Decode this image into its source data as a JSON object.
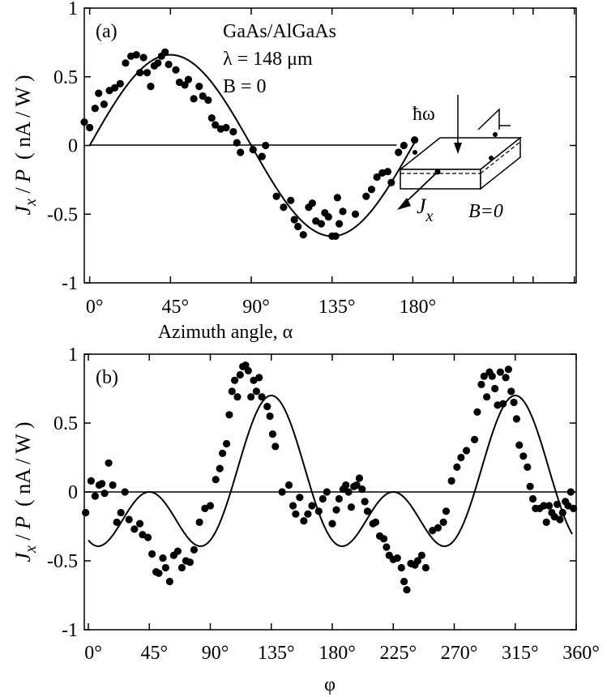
{
  "figure": {
    "background": "#ffffff",
    "ink": "#000000"
  },
  "chart_data": [
    {
      "id": "a",
      "type": "scatter",
      "panel_label": "(a)",
      "xlabel": "Azimuth angle, α",
      "ylabel": {
        "main": "J",
        "sub": "x",
        "slash": " / ",
        "var": "P",
        "units": "( nA / W )"
      },
      "xlim": [
        -3,
        271
      ],
      "ylim": [
        -1,
        1
      ],
      "xticks": [
        0,
        45,
        90,
        135,
        180
      ],
      "xtick_labels": [
        "0°",
        "45°",
        "90°",
        "135°",
        "180°"
      ],
      "extra_xticks": [
        202.5,
        236,
        247,
        270
      ],
      "yticks": [
        -1,
        -0.5,
        0,
        0.5,
        1
      ],
      "ytick_labels": [
        "-1",
        "-0.5",
        "0",
        "0.5",
        "1"
      ],
      "zero_line_range": [
        0,
        171
      ],
      "annotation": [
        "GaAs/AlGaAs",
        "λ = 148 μm",
        "B = 0"
      ],
      "inset": {
        "photon_label": "ħω",
        "current_label": "J",
        "current_sub": "x",
        "field_label": "B=0"
      },
      "fit": {
        "amplitude": 0.66,
        "form": "A*sin(2*alpha)",
        "x_range": [
          0,
          182
        ]
      },
      "points": [
        [
          -3,
          0.17
        ],
        [
          0,
          0.13
        ],
        [
          3,
          0.27
        ],
        [
          5,
          0.38
        ],
        [
          8,
          0.3
        ],
        [
          11,
          0.4
        ],
        [
          14,
          0.42
        ],
        [
          17,
          0.45
        ],
        [
          20,
          0.6
        ],
        [
          23,
          0.65
        ],
        [
          26,
          0.66
        ],
        [
          28,
          0.53
        ],
        [
          30,
          0.64
        ],
        [
          32,
          0.53
        ],
        [
          34,
          0.43
        ],
        [
          36,
          0.58
        ],
        [
          38,
          0.6
        ],
        [
          40,
          0.65
        ],
        [
          42,
          0.68
        ],
        [
          44,
          0.59
        ],
        [
          48,
          0.55
        ],
        [
          50,
          0.46
        ],
        [
          53,
          0.44
        ],
        [
          55,
          0.48
        ],
        [
          58,
          0.34
        ],
        [
          61,
          0.43
        ],
        [
          63,
          0.36
        ],
        [
          66,
          0.33
        ],
        [
          68,
          0.2
        ],
        [
          70,
          0.15
        ],
        [
          73,
          0.12
        ],
        [
          76,
          0.13
        ],
        [
          80,
          0.1
        ],
        [
          82,
          0.02
        ],
        [
          84,
          -0.05
        ],
        [
          91,
          -0.03
        ],
        [
          96,
          -0.08
        ],
        [
          98,
          0.0
        ],
        [
          104,
          -0.37
        ],
        [
          108,
          -0.45
        ],
        [
          112,
          -0.4
        ],
        [
          114,
          -0.54
        ],
        [
          116,
          -0.59
        ],
        [
          119,
          -0.65
        ],
        [
          122,
          -0.45
        ],
        [
          124,
          -0.42
        ],
        [
          126,
          -0.55
        ],
        [
          129,
          -0.57
        ],
        [
          131,
          -0.49
        ],
        [
          133,
          -0.52
        ],
        [
          135,
          -0.66
        ],
        [
          137,
          -0.66
        ],
        [
          138,
          -0.38
        ],
        [
          139,
          -0.57
        ],
        [
          141,
          -0.48
        ],
        [
          148,
          -0.5
        ],
        [
          154,
          -0.37
        ],
        [
          157,
          -0.32
        ],
        [
          160,
          -0.23
        ],
        [
          163,
          -0.2
        ],
        [
          166,
          -0.19
        ],
        [
          168,
          -0.27
        ],
        [
          172,
          -0.05
        ],
        [
          175,
          0.0
        ],
        [
          181,
          0.04
        ]
      ]
    },
    {
      "id": "b",
      "type": "scatter",
      "panel_label": "(b)",
      "xlabel": "φ",
      "ylabel": {
        "main": "J",
        "sub": "x",
        "slash": " / ",
        "var": "P",
        "units": "( nA / W )"
      },
      "xlim": [
        -3,
        360
      ],
      "ylim": [
        -1,
        1
      ],
      "xticks": [
        0,
        45,
        90,
        135,
        180,
        225,
        270,
        315,
        360
      ],
      "xtick_labels": [
        "0°",
        "45°",
        "90°",
        "135°",
        "180°",
        "225°",
        "270°",
        "315°",
        "360°"
      ],
      "yticks": [
        -1,
        -0.5,
        0,
        0.5,
        1
      ],
      "ytick_labels": [
        "-1",
        "-0.5",
        "0",
        "0.5",
        "1"
      ],
      "zero_line_range": [
        -3,
        360
      ],
      "fit": {
        "form": "0.35*sin(2*(phi-90)) - 0.35*sin(4*(phi-67.5))",
        "x_range": [
          0,
          357
        ]
      },
      "points": [
        [
          -2,
          -0.15
        ],
        [
          2,
          0.08
        ],
        [
          5,
          -0.03
        ],
        [
          8,
          0.05
        ],
        [
          10,
          0.06
        ],
        [
          12,
          -0.01
        ],
        [
          15,
          0.21
        ],
        [
          18,
          0.05
        ],
        [
          21,
          -0.22
        ],
        [
          24,
          -0.15
        ],
        [
          27,
          0.0
        ],
        [
          30,
          -0.2
        ],
        [
          34,
          -0.27
        ],
        [
          38,
          -0.23
        ],
        [
          40,
          -0.31
        ],
        [
          44,
          -0.33
        ],
        [
          47,
          -0.45
        ],
        [
          50,
          -0.58
        ],
        [
          52,
          -0.59
        ],
        [
          55,
          -0.48
        ],
        [
          57,
          -0.55
        ],
        [
          60,
          -0.65
        ],
        [
          63,
          -0.46
        ],
        [
          66,
          -0.43
        ],
        [
          69,
          -0.55
        ],
        [
          72,
          -0.5
        ],
        [
          75,
          -0.51
        ],
        [
          78,
          -0.42
        ],
        [
          82,
          -0.22
        ],
        [
          86,
          -0.12
        ],
        [
          90,
          -0.1
        ],
        [
          94,
          0.09
        ],
        [
          97,
          0.17
        ],
        [
          99,
          0.28
        ],
        [
          102,
          0.35
        ],
        [
          104,
          0.56
        ],
        [
          106,
          0.73
        ],
        [
          108,
          0.81
        ],
        [
          110,
          0.69
        ],
        [
          112,
          0.85
        ],
        [
          114,
          0.91
        ],
        [
          116,
          0.92
        ],
        [
          118,
          0.88
        ],
        [
          120,
          0.69
        ],
        [
          122,
          0.81
        ],
        [
          124,
          0.73
        ],
        [
          126,
          0.83
        ],
        [
          128,
          0.69
        ],
        [
          132,
          0.62
        ],
        [
          134,
          0.55
        ],
        [
          136,
          0.42
        ],
        [
          138,
          0.33
        ],
        [
          143,
          0.0
        ],
        [
          148,
          0.05
        ],
        [
          151,
          -0.1
        ],
        [
          153,
          -0.16
        ],
        [
          156,
          -0.04
        ],
        [
          159,
          -0.21
        ],
        [
          162,
          -0.16
        ],
        [
          165,
          -0.1
        ],
        [
          170,
          -0.14
        ],
        [
          173,
          -0.05
        ],
        [
          176,
          0.0
        ],
        [
          180,
          -0.23
        ],
        [
          183,
          -0.13
        ],
        [
          185,
          -0.05
        ],
        [
          188,
          0.02
        ],
        [
          190,
          0.05
        ],
        [
          192,
          0.0
        ],
        [
          194,
          -0.11
        ],
        [
          196,
          0.04
        ],
        [
          198,
          0.05
        ],
        [
          200,
          0.1
        ],
        [
          202,
          0.02
        ],
        [
          204,
          -0.07
        ],
        [
          206,
          -0.14
        ],
        [
          210,
          -0.23
        ],
        [
          212,
          -0.22
        ],
        [
          215,
          -0.32
        ],
        [
          218,
          -0.34
        ],
        [
          220,
          -0.4
        ],
        [
          222,
          -0.46
        ],
        [
          225,
          -0.49
        ],
        [
          228,
          -0.48
        ],
        [
          231,
          -0.55
        ],
        [
          233,
          -0.65
        ],
        [
          235,
          -0.71
        ],
        [
          238,
          -0.52
        ],
        [
          241,
          -0.53
        ],
        [
          243,
          -0.5
        ],
        [
          246,
          -0.46
        ],
        [
          249,
          -0.55
        ],
        [
          254,
          -0.28
        ],
        [
          258,
          -0.26
        ],
        [
          262,
          -0.22
        ],
        [
          264,
          -0.14
        ],
        [
          268,
          0.08
        ],
        [
          272,
          0.18
        ],
        [
          275,
          0.25
        ],
        [
          279,
          0.3
        ],
        [
          285,
          0.38
        ],
        [
          287,
          0.58
        ],
        [
          290,
          0.78
        ],
        [
          292,
          0.84
        ],
        [
          294,
          0.69
        ],
        [
          296,
          0.87
        ],
        [
          298,
          0.84
        ],
        [
          300,
          0.75
        ],
        [
          302,
          0.63
        ],
        [
          304,
          0.87
        ],
        [
          306,
          0.64
        ],
        [
          308,
          0.83
        ],
        [
          310,
          0.89
        ],
        [
          312,
          0.73
        ],
        [
          314,
          0.65
        ],
        [
          316,
          0.53
        ],
        [
          318,
          0.34
        ],
        [
          321,
          0.26
        ],
        [
          324,
          0.18
        ],
        [
          326,
          0.04
        ],
        [
          328,
          -0.05
        ],
        [
          330,
          -0.12
        ],
        [
          333,
          -0.12
        ],
        [
          336,
          -0.1
        ],
        [
          338,
          -0.22
        ],
        [
          340,
          -0.1
        ],
        [
          342,
          -0.15
        ],
        [
          344,
          -0.18
        ],
        [
          346,
          -0.09
        ],
        [
          348,
          -0.2
        ],
        [
          350,
          -0.15
        ],
        [
          352,
          -0.07
        ],
        [
          354,
          -0.1
        ],
        [
          356,
          0.0
        ],
        [
          358,
          -0.12
        ]
      ]
    }
  ]
}
